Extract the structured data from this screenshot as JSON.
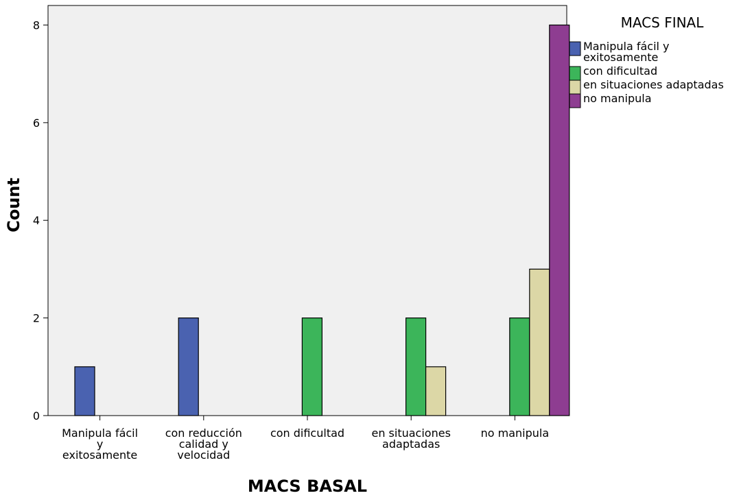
{
  "chart_data": {
    "type": "bar",
    "xlabel": "MACS BASAL",
    "ylabel": "Count",
    "ylim": [
      0,
      8.4
    ],
    "yticks": [
      0,
      2,
      4,
      6,
      8
    ],
    "grid": false,
    "legend_position": "right",
    "legend_title": "MACS FINAL",
    "categories": [
      [
        "Manipula fácil",
        "y",
        "exitosamente"
      ],
      [
        "con reducción",
        "calidad y",
        "velocidad"
      ],
      [
        "con dificultad"
      ],
      [
        "en situaciones",
        "adaptadas"
      ],
      [
        "no manipula"
      ]
    ],
    "series": [
      {
        "name": [
          "Manipula fácil y",
          "exitosamente"
        ],
        "color": "#4a62b0",
        "values": [
          1,
          2,
          0,
          0,
          0
        ]
      },
      {
        "name": [
          "con dificultad"
        ],
        "color": "#3cb55a",
        "values": [
          0,
          0,
          2,
          2,
          2
        ]
      },
      {
        "name": [
          "en situaciones adaptadas"
        ],
        "color": "#dcd7a6",
        "values": [
          0,
          0,
          0,
          1,
          3
        ]
      },
      {
        "name": [
          "no manipula"
        ],
        "color": "#8e3d91",
        "values": [
          0,
          0,
          0,
          0,
          8
        ]
      }
    ],
    "plot_background": "#f0f0f0"
  }
}
